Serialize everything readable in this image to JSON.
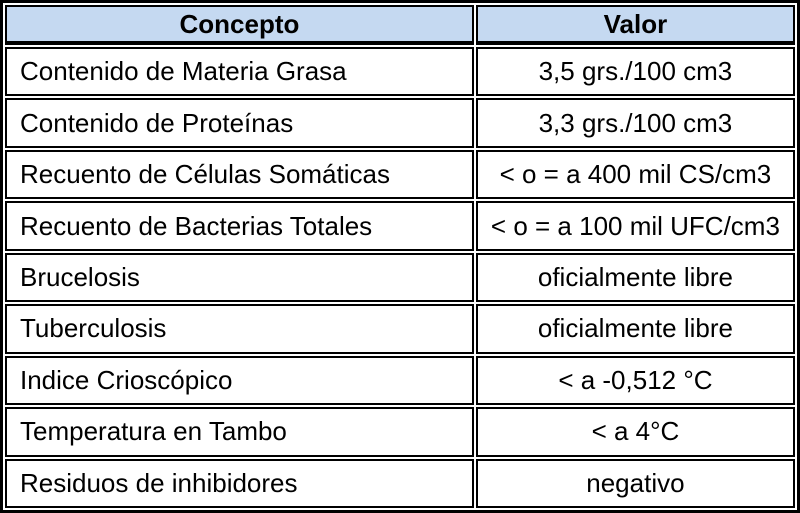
{
  "table": {
    "name": "tabla-parametros-leche",
    "header_bg": "#C5D9F1",
    "border_color": "#000000",
    "text_color": "#000000",
    "columns": [
      {
        "key": "concepto",
        "label": "Concepto"
      },
      {
        "key": "valor",
        "label": "Valor"
      }
    ],
    "rows": [
      {
        "concepto": "Contenido de Materia Grasa",
        "valor": "3,5 grs./100 cm3"
      },
      {
        "concepto": "Contenido de Proteínas",
        "valor": "3,3 grs./100 cm3"
      },
      {
        "concepto": "Recuento de Células Somáticas",
        "valor": "< o = a 400 mil CS/cm3"
      },
      {
        "concepto": "Recuento de Bacterias Totales",
        "valor": "< o = a 100 mil UFC/cm3"
      },
      {
        "concepto": "Brucelosis",
        "valor": "oficialmente libre"
      },
      {
        "concepto": "Tuberculosis",
        "valor": "oficialmente libre"
      },
      {
        "concepto": "Indice Crioscópico",
        "valor": "< a -0,512 °C"
      },
      {
        "concepto": "Temperatura en Tambo",
        "valor": "< a 4°C"
      },
      {
        "concepto": "Residuos de inhibidores",
        "valor": "negativo"
      }
    ]
  }
}
